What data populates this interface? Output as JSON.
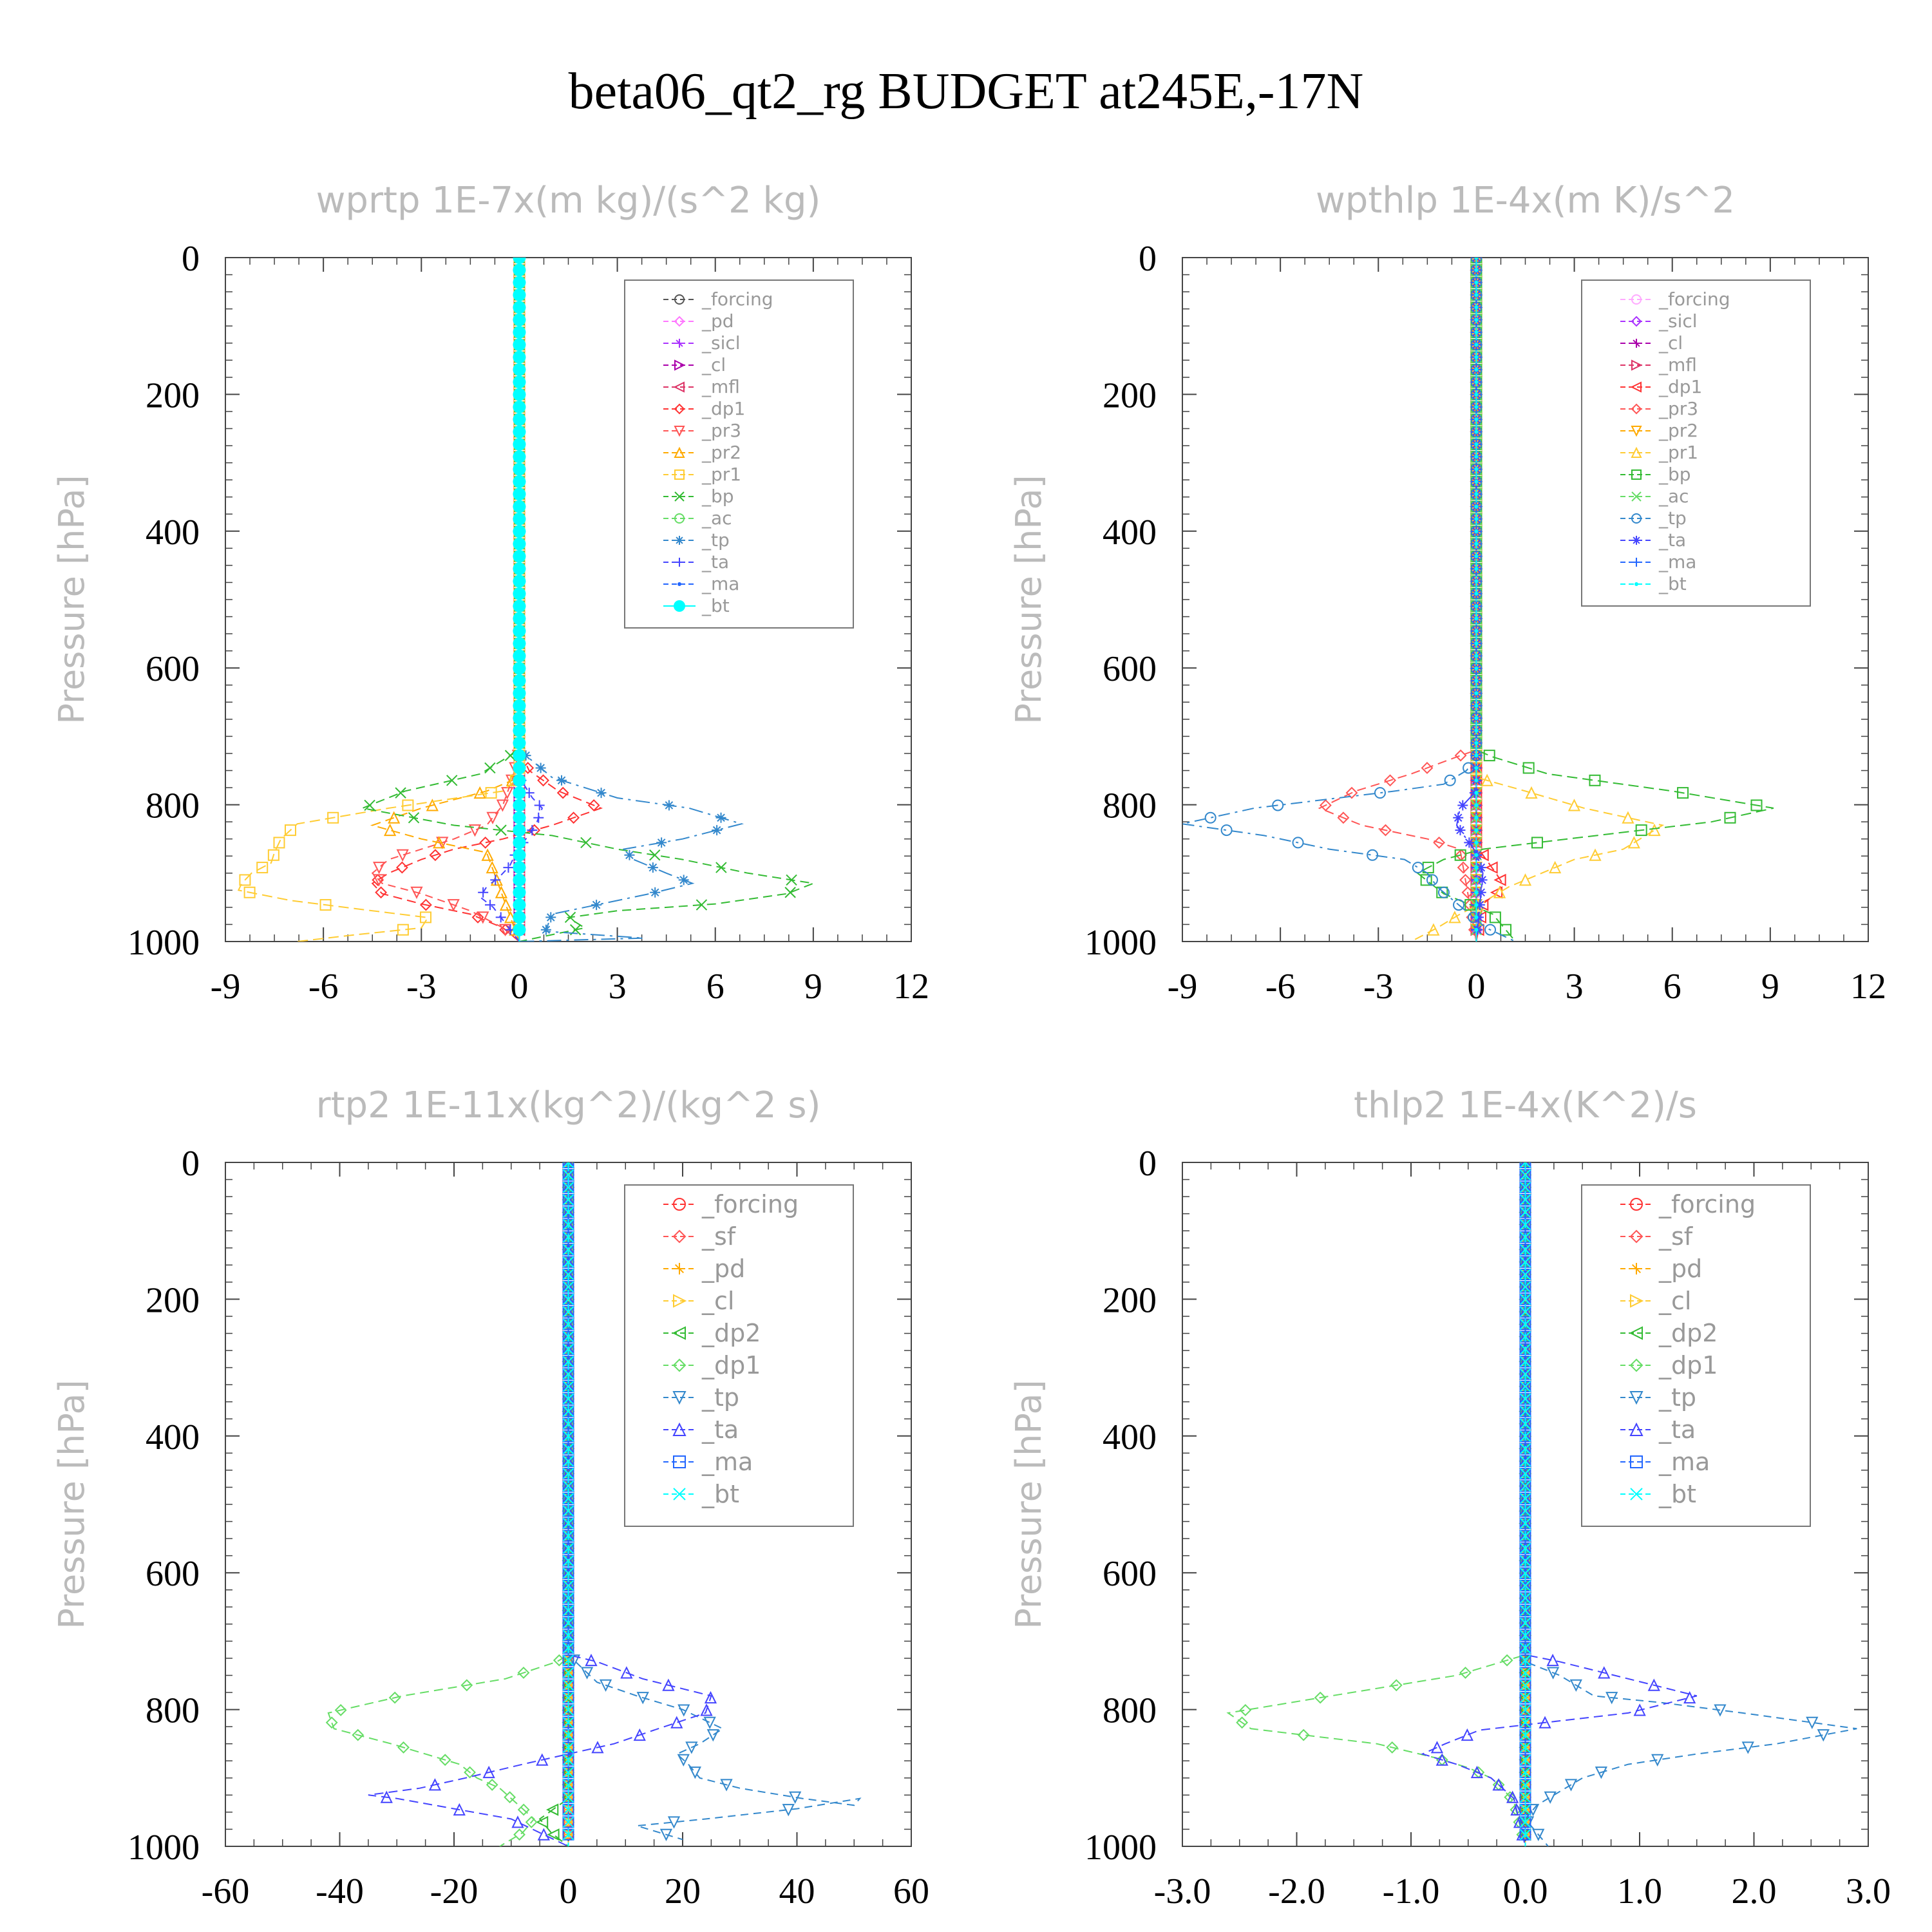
{
  "title": "beta06_qt2_rg  BUDGET at245E,-17N",
  "chart_data": [
    {
      "type": "line",
      "title": "wprtp   1E-7x(m kg)/(s^2 kg)",
      "ylabel": "Pressure [hPa]",
      "xlabel": "",
      "xlim": [
        -9,
        12
      ],
      "ylim": [
        1000,
        0
      ],
      "xticks": [
        "-9",
        "-6",
        "-3",
        "0",
        "3",
        "6",
        "9",
        "12"
      ],
      "yticks": [
        "0",
        "200",
        "400",
        "600",
        "800",
        "1000"
      ],
      "grid": false,
      "legend": "top-right",
      "series": [
        {
          "name": "_forcing",
          "color": "#555555",
          "x": [
            0,
            0
          ],
          "y": [
            0,
            1000
          ]
        },
        {
          "name": "_pd",
          "color": "#ff77ff",
          "x": [
            0,
            0
          ],
          "y": [
            0,
            1000
          ]
        },
        {
          "name": "_sicl",
          "color": "#aa33ff",
          "x": [
            0,
            0
          ],
          "y": [
            0,
            1000
          ]
        },
        {
          "name": "_cl",
          "color": "#aa00aa",
          "x": [
            0,
            0
          ],
          "y": [
            0,
            1000
          ]
        },
        {
          "name": "_mfl",
          "color": "#dd3366",
          "x": [
            0,
            0
          ],
          "y": [
            0,
            1000
          ]
        },
        {
          "name": "_dp1",
          "color": "#ff3333",
          "x": [
            0,
            0,
            0.3,
            1.2,
            2.5,
            1,
            -0.5,
            -2,
            -3,
            -4,
            -4.5,
            -4.2,
            -3,
            -1.5,
            -0.5,
            0
          ],
          "y": [
            0,
            720,
            750,
            780,
            805,
            830,
            850,
            865,
            880,
            900,
            915,
            930,
            945,
            960,
            980,
            1000
          ]
        },
        {
          "name": "_pr3",
          "color": "#ff5555",
          "x": [
            0,
            0,
            -0.2,
            -0.5,
            -1,
            -2,
            -3,
            -4,
            -4.5,
            -4.2,
            -3,
            -1.5,
            -0.5,
            0
          ],
          "y": [
            0,
            720,
            760,
            800,
            830,
            850,
            865,
            880,
            900,
            915,
            930,
            955,
            980,
            1000
          ]
        },
        {
          "name": "_pr2",
          "color": "#ffaa00",
          "x": [
            0,
            0,
            -1,
            -3,
            -4.5,
            -3,
            -1,
            0
          ],
          "y": [
            0,
            760,
            780,
            805,
            830,
            850,
            870,
            1000
          ]
        },
        {
          "name": "_pr1",
          "color": "#ffcc33",
          "x": [
            0,
            0,
            -0.5,
            -4,
            -6.8,
            -7.3,
            -7.5,
            -7.6,
            -8.2,
            -8.5,
            -8.6,
            -7,
            -4.5,
            -2.8,
            -3,
            -5,
            -6.8
          ],
          "y": [
            0,
            760,
            780,
            805,
            828,
            850,
            870,
            885,
            900,
            915,
            925,
            940,
            955,
            965,
            980,
            990,
            1000
          ]
        },
        {
          "name": "_bp",
          "color": "#33bb33",
          "x": [
            0,
            0,
            -1.2,
            -3.5,
            -4.8,
            -2,
            1,
            3,
            5,
            7,
            9,
            8.2,
            6,
            3,
            1.5,
            2,
            0
          ],
          "y": [
            0,
            720,
            755,
            780,
            805,
            830,
            845,
            865,
            880,
            900,
            915,
            930,
            945,
            955,
            965,
            980,
            1000
          ]
        },
        {
          "name": "_ac",
          "color": "#66dd66",
          "x": [
            0,
            0
          ],
          "y": [
            0,
            1000
          ]
        },
        {
          "name": "_tp",
          "color": "#3388cc",
          "x": [
            0,
            0,
            1,
            3,
            5.2,
            6.8,
            5,
            3.2,
            3.5,
            4.5,
            5.3,
            4,
            2.5,
            1,
            0.8,
            3.8,
            0
          ],
          "y": [
            0,
            720,
            760,
            790,
            805,
            828,
            850,
            865,
            880,
            900,
            915,
            930,
            945,
            960,
            985,
            995,
            1000
          ]
        },
        {
          "name": "_ta",
          "color": "#4444ff",
          "x": [
            0,
            0,
            0.4,
            0.7,
            0.5,
            0.2,
            -0.1,
            -0.3,
            -0.6,
            -1,
            -1.2,
            -0.8,
            0
          ],
          "y": [
            0,
            760,
            790,
            805,
            830,
            850,
            870,
            890,
            905,
            920,
            935,
            950,
            1000
          ]
        },
        {
          "name": "_ma",
          "color": "#2266ff",
          "x": [
            0,
            0
          ],
          "y": [
            0,
            1000
          ]
        },
        {
          "name": "_bt",
          "color": "#00ffff",
          "x": [
            0,
            0
          ],
          "y": [
            0,
            1000
          ]
        }
      ]
    },
    {
      "type": "line",
      "title": "wpthlp   1E-4x(m K)/s^2",
      "ylabel": "Pressure [hPa]",
      "xlabel": "",
      "xlim": [
        -9,
        12
      ],
      "ylim": [
        1000,
        0
      ],
      "xticks": [
        "-9",
        "-6",
        "-3",
        "0",
        "3",
        "6",
        "9",
        "12"
      ],
      "yticks": [
        "0",
        "200",
        "400",
        "600",
        "800",
        "1000"
      ],
      "grid": false,
      "legend": "top-right",
      "series": [
        {
          "name": "_forcing",
          "color": "#ffaaff",
          "x": [
            0,
            0
          ],
          "y": [
            0,
            1000
          ]
        },
        {
          "name": "_sicl",
          "color": "#aa33ff",
          "x": [
            0,
            0
          ],
          "y": [
            0,
            1000
          ]
        },
        {
          "name": "_cl",
          "color": "#aa00aa",
          "x": [
            0,
            0
          ],
          "y": [
            0,
            1000
          ]
        },
        {
          "name": "_mfl",
          "color": "#dd3366",
          "x": [
            0,
            0
          ],
          "y": [
            0,
            1000
          ]
        },
        {
          "name": "_dp1",
          "color": "#ff3333",
          "x": [
            0,
            0,
            0.3,
            0.6,
            0.8,
            0.6,
            0.2,
            0
          ],
          "y": [
            0,
            860,
            880,
            900,
            915,
            930,
            945,
            1000
          ]
        },
        {
          "name": "_pr3",
          "color": "#ff5555",
          "x": [
            0,
            0,
            -0.6,
            -2,
            -3.7,
            -4.8,
            -3.5,
            -1.5,
            -0.5,
            0
          ],
          "y": [
            0,
            720,
            730,
            755,
            780,
            805,
            830,
            850,
            865,
            1000
          ]
        },
        {
          "name": "_pr2",
          "color": "#ffaa00",
          "x": [
            0,
            0
          ],
          "y": [
            0,
            1000
          ]
        },
        {
          "name": "_pr1",
          "color": "#ffcc33",
          "x": [
            0,
            0,
            1.5,
            3.3,
            5.7,
            4.5,
            3,
            2,
            1,
            0.3,
            -0.5,
            -1.2,
            -2
          ],
          "y": [
            0,
            760,
            780,
            805,
            830,
            865,
            880,
            900,
            920,
            940,
            960,
            980,
            1000
          ]
        },
        {
          "name": "_bp",
          "color": "#33bb33",
          "x": [
            0,
            0,
            0.5,
            2.2,
            6,
            9.1,
            7.2,
            2.8,
            0.2,
            -1,
            -1.8,
            -1,
            0.5,
            1.2
          ],
          "y": [
            0,
            720,
            730,
            755,
            780,
            805,
            825,
            850,
            865,
            880,
            900,
            930,
            960,
            1000
          ]
        },
        {
          "name": "_ac",
          "color": "#66dd66",
          "x": [
            0,
            0
          ],
          "y": [
            0,
            1000
          ]
        },
        {
          "name": "_tp",
          "color": "#3388cc",
          "x": [
            0,
            0,
            -0.3,
            -1,
            -2.5,
            -6.8,
            -9,
            -6.5,
            -4.5,
            -2.2,
            -1.5,
            -1.2,
            -0.7,
            -0.2,
            0.3,
            1.2
          ],
          "y": [
            0,
            730,
            750,
            770,
            780,
            805,
            828,
            845,
            865,
            880,
            900,
            920,
            940,
            960,
            980,
            1000
          ]
        },
        {
          "name": "_ta",
          "color": "#4444ff",
          "x": [
            0,
            0,
            -0.5,
            -0.6,
            -0.3,
            0,
            0.2,
            0
          ],
          "y": [
            0,
            780,
            805,
            830,
            850,
            870,
            900,
            1000
          ]
        },
        {
          "name": "_ma",
          "color": "#2266ff",
          "x": [
            0,
            0
          ],
          "y": [
            0,
            1000
          ]
        },
        {
          "name": "_bt",
          "color": "#00ffff",
          "x": [
            0,
            0
          ],
          "y": [
            0,
            1000
          ]
        }
      ]
    },
    {
      "type": "line",
      "title": "rtp2   1E-11x(kg^2)/(kg^2 s)",
      "ylabel": "Pressure [hPa]",
      "xlabel": "",
      "xlim": [
        -60,
        60
      ],
      "ylim": [
        1000,
        0
      ],
      "xticks": [
        "-60",
        "-40",
        "-20",
        "0",
        "20",
        "40",
        "60"
      ],
      "yticks": [
        "0",
        "200",
        "400",
        "600",
        "800",
        "1000"
      ],
      "grid": false,
      "legend": "top-right",
      "series": [
        {
          "name": "_forcing",
          "color": "#ff3333",
          "x": [
            0,
            0
          ],
          "y": [
            0,
            1000
          ]
        },
        {
          "name": "_sf",
          "color": "#ff5555",
          "x": [
            0,
            0
          ],
          "y": [
            0,
            1000
          ]
        },
        {
          "name": "_pd",
          "color": "#ffaa00",
          "x": [
            0,
            0
          ],
          "y": [
            0,
            1000
          ]
        },
        {
          "name": "_cl",
          "color": "#ffcc33",
          "x": [
            0,
            0
          ],
          "y": [
            0,
            1000
          ]
        },
        {
          "name": "_dp2",
          "color": "#33bb33",
          "x": [
            0,
            0,
            -5,
            -3,
            0
          ],
          "y": [
            0,
            930,
            960,
            980,
            1000
          ]
        },
        {
          "name": "_dp1",
          "color": "#66dd66",
          "x": [
            0,
            0,
            -2,
            -11,
            -29,
            -42,
            -41,
            -31,
            -25,
            -19,
            -16,
            -12,
            -10,
            -8,
            -6,
            -8,
            -12
          ],
          "y": [
            0,
            720,
            730,
            755,
            780,
            805,
            828,
            850,
            865,
            880,
            900,
            915,
            930,
            945,
            960,
            980,
            1000
          ]
        },
        {
          "name": "_tp",
          "color": "#3388cc",
          "x": [
            0,
            0,
            5,
            12,
            20,
            27,
            23,
            19,
            21,
            23,
            30,
            41,
            50,
            51,
            40,
            24,
            12,
            20
          ],
          "y": [
            0,
            720,
            760,
            780,
            800,
            828,
            850,
            865,
            880,
            900,
            915,
            930,
            940,
            930,
            945,
            960,
            970,
            990
          ]
        },
        {
          "name": "_ta",
          "color": "#4444ff",
          "x": [
            0,
            0,
            5,
            13,
            25,
            24,
            15,
            8,
            0,
            -8,
            -18,
            -26,
            -35,
            -30,
            -20,
            -10,
            -5,
            0
          ],
          "y": [
            0,
            720,
            730,
            755,
            780,
            805,
            830,
            850,
            865,
            880,
            900,
            915,
            925,
            930,
            945,
            960,
            980,
            1000
          ]
        },
        {
          "name": "_ma",
          "color": "#2266ff",
          "x": [
            0,
            0
          ],
          "y": [
            0,
            1000
          ]
        },
        {
          "name": "_bt",
          "color": "#00ffff",
          "x": [
            0,
            0
          ],
          "y": [
            0,
            1000
          ]
        }
      ]
    },
    {
      "type": "line",
      "title": "thlp2   1E-4x(K^2)/s",
      "ylabel": "Pressure [hPa]",
      "xlabel": "",
      "xlim": [
        -3.0,
        3.0
      ],
      "ylim": [
        1000,
        0
      ],
      "xticks": [
        "-3.0",
        "-2.0",
        "-1.0",
        "0.0",
        "1.0",
        "2.0",
        "3.0"
      ],
      "yticks": [
        "0",
        "200",
        "400",
        "600",
        "800",
        "1000"
      ],
      "grid": false,
      "legend": "top-right",
      "series": [
        {
          "name": "_forcing",
          "color": "#ff3333",
          "x": [
            0,
            0
          ],
          "y": [
            0,
            1000
          ]
        },
        {
          "name": "_sf",
          "color": "#ff5555",
          "x": [
            0,
            0
          ],
          "y": [
            0,
            1000
          ]
        },
        {
          "name": "_pd",
          "color": "#ffaa00",
          "x": [
            0,
            0
          ],
          "y": [
            0,
            1000
          ]
        },
        {
          "name": "_cl",
          "color": "#ffcc33",
          "x": [
            0,
            0
          ],
          "y": [
            0,
            1000
          ]
        },
        {
          "name": "_dp2",
          "color": "#33bb33",
          "x": [
            0,
            0
          ],
          "y": [
            0,
            1000
          ]
        },
        {
          "name": "_dp1",
          "color": "#66dd66",
          "x": [
            0,
            0,
            -0.6,
            -1.7,
            -2.6,
            -2.4,
            -1.3,
            -0.8,
            -0.5,
            -0.3,
            -0.2,
            -0.1,
            0
          ],
          "y": [
            0,
            720,
            750,
            780,
            805,
            828,
            850,
            870,
            885,
            900,
            915,
            935,
            1000
          ]
        },
        {
          "name": "_tp",
          "color": "#3388cc",
          "x": [
            0,
            0,
            0.3,
            0.6,
            1.2,
            1.9,
            2.9,
            2.2,
            1.5,
            0.9,
            0.5,
            0.3,
            0.1,
            0,
            0.2
          ],
          "y": [
            0,
            730,
            750,
            780,
            790,
            805,
            828,
            850,
            865,
            880,
            900,
            920,
            940,
            960,
            1000
          ]
        },
        {
          "name": "_ta",
          "color": "#4444ff",
          "x": [
            0,
            0,
            0.3,
            0.9,
            1.5,
            0.9,
            -0.4,
            -0.7,
            -0.9,
            -0.6,
            -0.3,
            -0.1,
            0
          ],
          "y": [
            0,
            720,
            730,
            755,
            780,
            805,
            830,
            850,
            865,
            880,
            900,
            930,
            1000
          ]
        },
        {
          "name": "_ma",
          "color": "#2266ff",
          "x": [
            0,
            0
          ],
          "y": [
            0,
            1000
          ]
        },
        {
          "name": "_bt",
          "color": "#00ffff",
          "x": [
            0,
            0
          ],
          "y": [
            0,
            1000
          ]
        }
      ]
    }
  ]
}
